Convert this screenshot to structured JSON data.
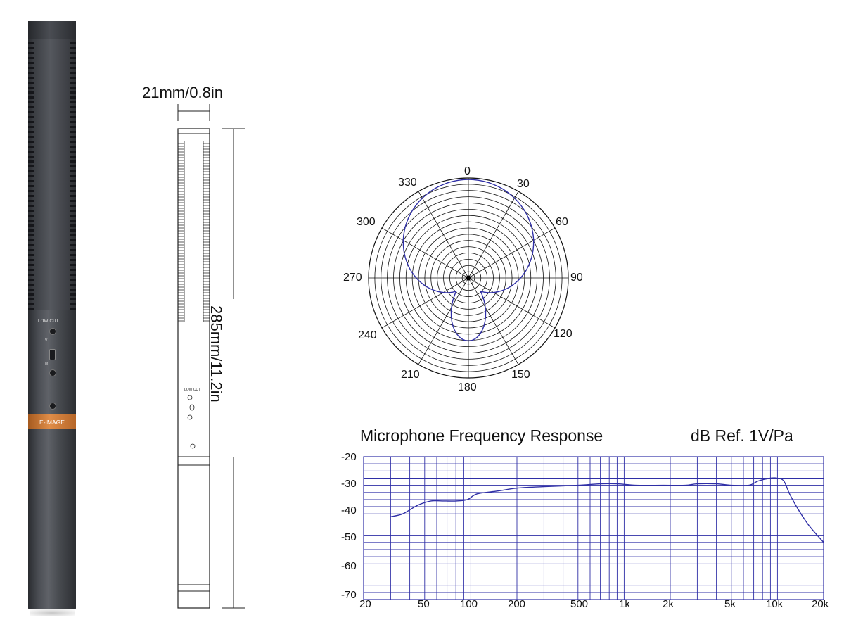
{
  "mic_photo": {
    "low_cut_label": "LOW CUT",
    "switch_v_label": "V",
    "switch_m_label": "M",
    "brand_label": "E-IMAGE",
    "band_color": "#d87d33"
  },
  "dimensions": {
    "width_label": "21mm/0.8in",
    "length_label": "285mm/11.2in",
    "drawing_low_cut_label": "LOW CUT"
  },
  "polar_pattern": {
    "angle_labels": [
      "0",
      "30",
      "60",
      "90",
      "120",
      "150",
      "180",
      "210",
      "240",
      "270",
      "300",
      "330"
    ],
    "curve_color": "#2f2fa6",
    "grid_color": "#111111"
  },
  "chart_data": {
    "type": "line",
    "title": "Microphone Frequency Response",
    "subtitle": "dB Ref.  1V/Pa",
    "x_scale": "log",
    "x_range": [
      20,
      20000
    ],
    "y_range": [
      -70,
      -20
    ],
    "x_tick_labels": [
      "20",
      "50",
      "100",
      "200",
      "500",
      "1k",
      "2k",
      "5k",
      "10k",
      "20k"
    ],
    "y_tick_labels": [
      "-20",
      "-30",
      "-40",
      "-50",
      "-60",
      "-70"
    ],
    "grid": true,
    "grid_color": "#2f2fa6",
    "series": [
      {
        "color": "#2f2fa6",
        "x": [
          30,
          36,
          45,
          55,
          65,
          80,
          95,
          110,
          150,
          200,
          300,
          500,
          700,
          900,
          1200,
          1800,
          2500,
          3000,
          4000,
          5000,
          6500,
          7500,
          9000,
          10000,
          11000,
          12000,
          13500,
          16000,
          20000
        ],
        "y": [
          -41,
          -40,
          -37,
          -35.5,
          -35.5,
          -35.5,
          -35,
          -33,
          -32,
          -31,
          -30.5,
          -30,
          -29.5,
          -29.5,
          -30,
          -30,
          -30,
          -29.5,
          -29.5,
          -30,
          -30,
          -28.5,
          -27.5,
          -27.5,
          -28.5,
          -33,
          -38,
          -44,
          -50
        ]
      }
    ]
  }
}
